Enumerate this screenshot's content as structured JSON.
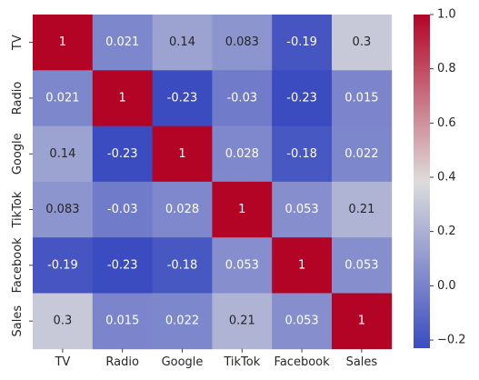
{
  "chart_data": {
    "type": "heatmap",
    "title": "",
    "xlabel": "",
    "ylabel": "",
    "x_categories": [
      "TV",
      "Radio",
      "Google",
      "TikTok",
      "Facebook",
      "Sales"
    ],
    "y_categories": [
      "TV",
      "Radio",
      "Google",
      "TikTok",
      "Facebook",
      "Sales"
    ],
    "values": [
      [
        1,
        0.021,
        0.14,
        0.083,
        -0.19,
        0.3
      ],
      [
        0.021,
        1,
        -0.23,
        -0.03,
        -0.23,
        0.015
      ],
      [
        0.14,
        -0.23,
        1,
        0.028,
        -0.18,
        0.022
      ],
      [
        0.083,
        -0.03,
        0.028,
        1,
        0.053,
        0.21
      ],
      [
        -0.19,
        -0.23,
        -0.18,
        0.053,
        1,
        0.053
      ],
      [
        0.3,
        0.015,
        0.022,
        0.21,
        0.053,
        1
      ]
    ],
    "cell_labels": [
      [
        "1",
        "0.021",
        "0.14",
        "0.083",
        "-0.19",
        "0.3"
      ],
      [
        "0.021",
        "1",
        "-0.23",
        "-0.03",
        "-0.23",
        "0.015"
      ],
      [
        "0.14",
        "-0.23",
        "1",
        "0.028",
        "-0.18",
        "0.022"
      ],
      [
        "0.083",
        "-0.03",
        "0.028",
        "1",
        "0.053",
        "0.21"
      ],
      [
        "-0.19",
        "-0.23",
        "-0.18",
        "0.053",
        "1",
        "0.053"
      ],
      [
        "0.3",
        "0.015",
        "0.022",
        "0.21",
        "0.053",
        "1"
      ]
    ],
    "colormap": "coolwarm",
    "colormap_stops": [
      "#3b4cc0",
      "#dddcdc",
      "#b40426"
    ],
    "vmin": -0.23,
    "vmax": 1,
    "colorbar": {
      "ticks": [
        -0.2,
        0.0,
        0.2,
        0.4,
        0.6,
        0.8,
        1.0
      ],
      "tick_labels": [
        "−0.2",
        "0.0",
        "0.2",
        "0.4",
        "0.6",
        "0.8",
        "1.0"
      ]
    },
    "grid": false,
    "legend": "colorbar-right"
  }
}
